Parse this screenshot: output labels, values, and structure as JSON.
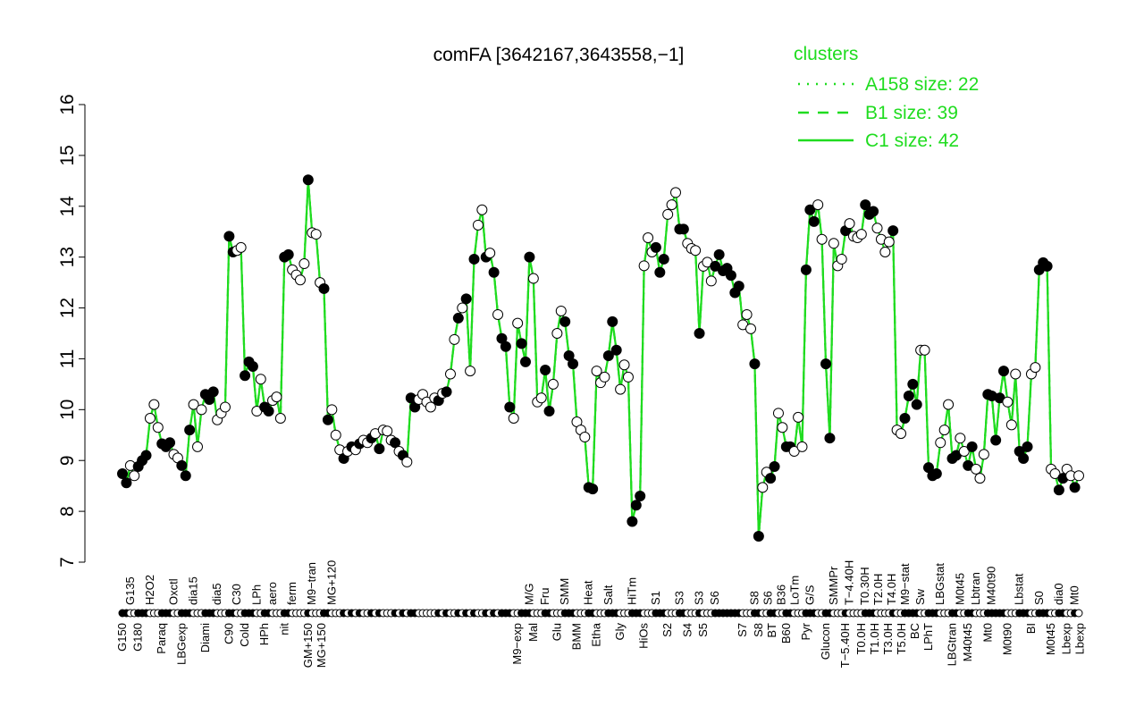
{
  "chart_data": {
    "type": "line",
    "title": "comFA [3642167,3643558,−1]",
    "xlabel": "",
    "ylabel": "",
    "ylim": [
      7,
      16
    ],
    "yticks": [
      7,
      8,
      9,
      10,
      11,
      12,
      13,
      14,
      15,
      16
    ],
    "grid": false,
    "line_color": "#1fdc1f",
    "legend": {
      "title": "clusters",
      "placement": "top-right",
      "entries": [
        {
          "label": "A158 size: 22",
          "style": "dotted"
        },
        {
          "label": "B1 size: 39",
          "style": "dashed"
        },
        {
          "label": "C1 size: 42",
          "style": "solid"
        }
      ]
    },
    "points_format": [
      "label",
      "value",
      "filled"
    ],
    "points": [
      [
        "G150",
        8.74,
        1
      ],
      [
        "",
        8.56,
        1
      ],
      [
        "G135",
        8.9,
        0
      ],
      [
        "",
        8.7,
        0
      ],
      [
        "G180",
        8.88,
        1
      ],
      [
        "",
        9.0,
        1
      ],
      [
        "",
        9.1,
        1
      ],
      [
        "H2O2",
        9.83,
        0
      ],
      [
        "",
        10.1,
        0
      ],
      [
        "",
        9.65,
        0
      ],
      [
        "Paraq",
        9.33,
        1
      ],
      [
        "",
        9.27,
        1
      ],
      [
        "",
        9.35,
        1
      ],
      [
        "Oxctl",
        9.12,
        0
      ],
      [
        "",
        9.05,
        0
      ],
      [
        "LBGexp",
        8.9,
        1
      ],
      [
        "",
        8.7,
        1
      ],
      [
        "",
        9.6,
        1
      ],
      [
        "dia15",
        10.1,
        0
      ],
      [
        "",
        9.27,
        0
      ],
      [
        "",
        10.0,
        0
      ],
      [
        "Diami",
        10.3,
        1
      ],
      [
        "",
        10.2,
        1
      ],
      [
        "",
        10.35,
        1
      ],
      [
        "dia5",
        9.8,
        0
      ],
      [
        "",
        9.93,
        0
      ],
      [
        "",
        10.05,
        0
      ],
      [
        "C90",
        13.41,
        1
      ],
      [
        "",
        13.1,
        1
      ],
      [
        "C30",
        13.13,
        0
      ],
      [
        "",
        13.19,
        0
      ],
      [
        "Cold",
        10.67,
        1
      ],
      [
        "",
        10.94,
        1
      ],
      [
        "",
        10.85,
        1
      ],
      [
        "LPh",
        9.97,
        0
      ],
      [
        "",
        10.6,
        0
      ],
      [
        "HPh",
        10.05,
        1
      ],
      [
        "",
        9.97,
        1
      ],
      [
        "aero",
        10.18,
        0
      ],
      [
        "",
        10.25,
        0
      ],
      [
        "",
        9.83,
        0
      ],
      [
        "nit",
        13.0,
        1
      ],
      [
        "",
        13.05,
        1
      ],
      [
        "ferm",
        12.75,
        0
      ],
      [
        "",
        12.65,
        0
      ],
      [
        "",
        12.55,
        0
      ],
      [
        "",
        12.87,
        0
      ],
      [
        "GM+150",
        14.52,
        1
      ],
      [
        "M9−tran",
        13.48,
        0
      ],
      [
        "",
        13.45,
        0
      ],
      [
        "MG+150",
        12.5,
        0
      ],
      [
        "",
        12.38,
        1
      ],
      [
        "",
        9.8,
        1
      ],
      [
        "MG+120",
        10.0,
        0
      ],
      [
        "",
        9.5,
        0
      ],
      [
        "",
        9.21,
        0
      ],
      [
        "",
        9.04,
        1
      ],
      [
        "",
        9.18,
        0
      ],
      [
        "",
        9.27,
        1
      ],
      [
        "",
        9.21,
        0
      ],
      [
        "",
        9.33,
        1
      ],
      [
        "",
        9.4,
        0
      ],
      [
        "",
        9.35,
        0
      ],
      [
        "",
        9.44,
        1
      ],
      [
        "",
        9.53,
        0
      ],
      [
        "",
        9.23,
        1
      ],
      [
        "",
        9.6,
        0
      ],
      [
        "",
        9.58,
        0
      ],
      [
        "",
        9.4,
        0
      ],
      [
        "",
        9.35,
        1
      ],
      [
        "",
        9.18,
        0
      ],
      [
        "",
        9.1,
        1
      ],
      [
        "",
        8.97,
        0
      ],
      [
        "",
        10.23,
        1
      ],
      [
        "",
        10.05,
        1
      ],
      [
        "",
        10.2,
        0
      ],
      [
        "",
        10.3,
        0
      ],
      [
        "",
        10.15,
        0
      ],
      [
        "",
        10.05,
        0
      ],
      [
        "",
        10.23,
        0
      ],
      [
        "",
        10.18,
        1
      ],
      [
        "",
        10.32,
        0
      ],
      [
        "",
        10.35,
        1
      ],
      [
        "",
        10.7,
        0
      ],
      [
        "",
        11.38,
        0
      ],
      [
        "",
        11.8,
        1
      ],
      [
        "",
        12.0,
        0
      ],
      [
        "",
        12.18,
        1
      ],
      [
        "",
        10.76,
        0
      ],
      [
        "",
        12.96,
        1
      ],
      [
        "",
        13.63,
        0
      ],
      [
        "",
        13.93,
        0
      ],
      [
        "",
        13.0,
        1
      ],
      [
        "",
        13.08,
        0
      ],
      [
        "",
        12.7,
        1
      ],
      [
        "",
        11.87,
        0
      ],
      [
        "",
        11.4,
        1
      ],
      [
        "",
        11.24,
        1
      ],
      [
        "",
        10.05,
        1
      ],
      [
        "",
        9.83,
        0
      ],
      [
        "M9−exp",
        11.7,
        0
      ],
      [
        "",
        11.3,
        1
      ],
      [
        "",
        10.94,
        1
      ],
      [
        "M/G",
        13.0,
        1
      ],
      [
        "Mal",
        12.58,
        0
      ],
      [
        "",
        10.15,
        0
      ],
      [
        "",
        10.23,
        0
      ],
      [
        "Fru",
        10.78,
        1
      ],
      [
        "",
        9.97,
        1
      ],
      [
        "",
        10.5,
        0
      ],
      [
        "Glu",
        11.5,
        0
      ],
      [
        "",
        11.94,
        0
      ],
      [
        "SMM",
        11.73,
        1
      ],
      [
        "",
        11.06,
        1
      ],
      [
        "",
        10.9,
        1
      ],
      [
        "BMM",
        9.76,
        0
      ],
      [
        "",
        9.6,
        0
      ],
      [
        "",
        9.46,
        0
      ],
      [
        "Heat",
        8.47,
        1
      ],
      [
        "",
        8.44,
        1
      ],
      [
        "Etha",
        10.76,
        0
      ],
      [
        "",
        10.53,
        0
      ],
      [
        "",
        10.64,
        0
      ],
      [
        "Salt",
        11.06,
        1
      ],
      [
        "",
        11.73,
        1
      ],
      [
        "",
        11.17,
        1
      ],
      [
        "Gly",
        10.4,
        0
      ],
      [
        "",
        10.88,
        0
      ],
      [
        "",
        10.64,
        0
      ],
      [
        "HiTm",
        7.8,
        1
      ],
      [
        "",
        8.12,
        1
      ],
      [
        "",
        8.3,
        1
      ],
      [
        "HiOs",
        12.83,
        0
      ],
      [
        "",
        13.38,
        0
      ],
      [
        "",
        13.1,
        0
      ],
      [
        "S1",
        13.19,
        1
      ],
      [
        "",
        12.7,
        1
      ],
      [
        "",
        12.96,
        1
      ],
      [
        "S2",
        13.84,
        0
      ],
      [
        "",
        14.03,
        0
      ],
      [
        "",
        14.27,
        0
      ],
      [
        "S3",
        13.55,
        1
      ],
      [
        "",
        13.55,
        1
      ],
      [
        "S4",
        13.27,
        0
      ],
      [
        "",
        13.17,
        0
      ],
      [
        "",
        13.13,
        0
      ],
      [
        "S3",
        11.5,
        1
      ],
      [
        "S5",
        12.82,
        0
      ],
      [
        "",
        12.9,
        0
      ],
      [
        "",
        12.53,
        0
      ],
      [
        "S6",
        12.82,
        1
      ],
      [
        "",
        13.05,
        1
      ],
      [
        "",
        12.73,
        1
      ],
      [
        "",
        12.78,
        1
      ],
      [
        "",
        12.64,
        1
      ],
      [
        "",
        12.3,
        1
      ],
      [
        "",
        12.43,
        1
      ],
      [
        "S7",
        11.67,
        0
      ],
      [
        "",
        11.87,
        0
      ],
      [
        "",
        11.59,
        0
      ],
      [
        "S8",
        10.9,
        1
      ],
      [
        "S8",
        7.51,
        1
      ],
      [
        "S6",
        8.47,
        0
      ],
      [
        "",
        8.77,
        0
      ],
      [
        "BT",
        8.65,
        1
      ],
      [
        "",
        8.88,
        1
      ],
      [
        "B36",
        9.93,
        0
      ],
      [
        "",
        9.65,
        0
      ],
      [
        "B60",
        9.27,
        1
      ],
      [
        "",
        9.27,
        1
      ],
      [
        "LoTm",
        9.18,
        0
      ],
      [
        "",
        9.85,
        0
      ],
      [
        "",
        9.27,
        0
      ],
      [
        "Pyr",
        12.75,
        1
      ],
      [
        "G/S",
        13.93,
        1
      ],
      [
        "",
        13.7,
        1
      ],
      [
        "",
        14.03,
        0
      ],
      [
        "",
        13.35,
        0
      ],
      [
        "Glucon",
        10.9,
        1
      ],
      [
        "",
        9.44,
        1
      ],
      [
        "SMMPr",
        13.27,
        0
      ],
      [
        "",
        12.83,
        0
      ],
      [
        "",
        12.96,
        0
      ],
      [
        "T−5.40H",
        13.52,
        1
      ],
      [
        "T−4.40H",
        13.66,
        0
      ],
      [
        "",
        13.41,
        0
      ],
      [
        "",
        13.38,
        0
      ],
      [
        "T0.0H",
        13.45,
        0
      ],
      [
        "T0.30H",
        14.03,
        1
      ],
      [
        "T1.0H",
        13.84,
        1
      ],
      [
        "",
        13.9,
        1
      ],
      [
        "T2.0H",
        13.57,
        0
      ],
      [
        "",
        13.35,
        0
      ],
      [
        "T3.0H",
        13.1,
        0
      ],
      [
        "T4.0H",
        13.3,
        0
      ],
      [
        "T5.0H",
        13.52,
        1
      ],
      [
        "M9−stat",
        9.6,
        0
      ],
      [
        "",
        9.53,
        0
      ],
      [
        "BC",
        9.83,
        1
      ],
      [
        "",
        10.27,
        1
      ],
      [
        "",
        10.5,
        1
      ],
      [
        "",
        10.1,
        1
      ],
      [
        "Sw",
        11.17,
        0
      ],
      [
        "",
        11.17,
        0
      ],
      [
        "LPhT",
        8.86,
        1
      ],
      [
        "",
        8.7,
        1
      ],
      [
        "",
        8.74,
        1
      ],
      [
        "LBGstat",
        9.35,
        0
      ],
      [
        "",
        9.6,
        0
      ],
      [
        "",
        10.1,
        0
      ],
      [
        "LBGtran",
        9.04,
        1
      ],
      [
        "",
        9.1,
        1
      ],
      [
        "M0t45",
        9.44,
        0
      ],
      [
        "",
        9.18,
        0
      ],
      [
        "M40t45",
        8.9,
        1
      ],
      [
        "",
        9.27,
        1
      ],
      [
        "Lbtran",
        8.83,
        0
      ],
      [
        "",
        8.65,
        0
      ],
      [
        "",
        9.12,
        0
      ],
      [
        "Mt0",
        10.3,
        1
      ],
      [
        "M40t90",
        10.27,
        1
      ],
      [
        "",
        9.4,
        1
      ],
      [
        "",
        10.23,
        1
      ],
      [
        "",
        10.76,
        1
      ],
      [
        "M0t90",
        10.15,
        0
      ],
      [
        "",
        9.7,
        0
      ],
      [
        "",
        10.7,
        0
      ],
      [
        "Lbstat",
        9.18,
        1
      ],
      [
        "",
        9.04,
        1
      ],
      [
        "",
        9.27,
        1
      ],
      [
        "BI",
        10.7,
        0
      ],
      [
        "",
        10.83,
        0
      ],
      [
        "S0",
        12.75,
        1
      ],
      [
        "",
        12.89,
        1
      ],
      [
        "",
        12.82,
        1
      ],
      [
        "M0t45",
        8.83,
        0
      ],
      [
        "",
        8.74,
        0
      ],
      [
        "dia0",
        8.42,
        1
      ],
      [
        "",
        8.65,
        1
      ],
      [
        "Lbexp",
        8.83,
        0
      ],
      [
        "",
        8.7,
        0
      ],
      [
        "Mt0",
        8.47,
        1
      ],
      [
        "Lbexp",
        8.7,
        0
      ]
    ]
  }
}
